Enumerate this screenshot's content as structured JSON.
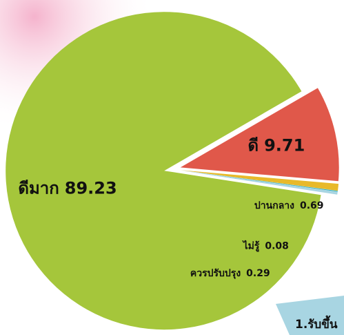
{
  "chart_data": {
    "type": "pie",
    "categories": [
      "ดีมาก",
      "ดี",
      "ปานกลาง",
      "ไม่รู้",
      "ควรปรับปรุง"
    ],
    "values": [
      89.23,
      9.71,
      0.69,
      0.08,
      0.29
    ],
    "colors": [
      "#a5c63b",
      "#e0584a",
      "#e8b92a",
      "#2bafbd",
      "#a8d5e2"
    ]
  },
  "footer_label": "1.รับขึ้น"
}
